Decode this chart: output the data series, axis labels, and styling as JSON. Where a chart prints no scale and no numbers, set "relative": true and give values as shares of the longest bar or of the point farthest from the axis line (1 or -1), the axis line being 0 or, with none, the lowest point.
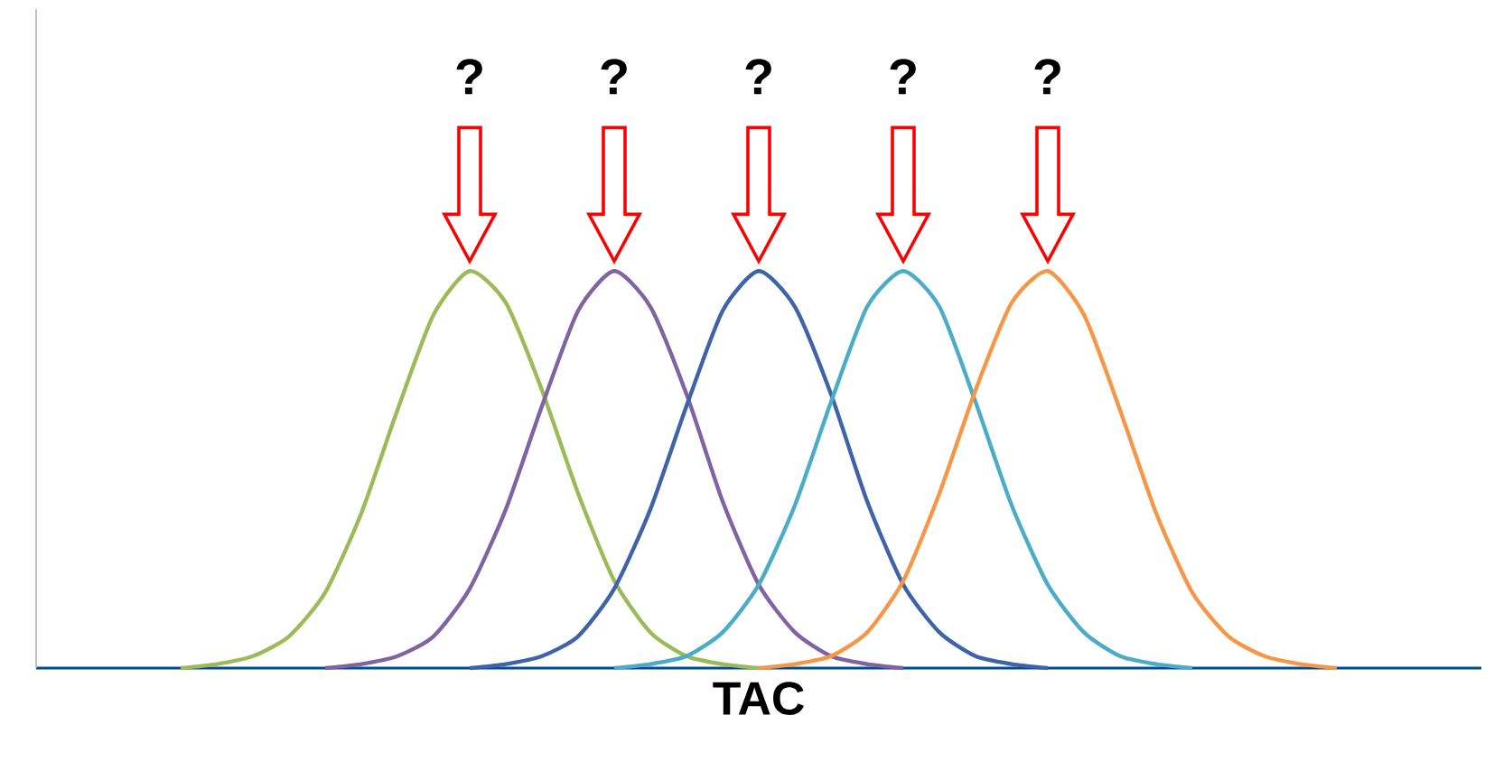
{
  "chart_data": {
    "type": "line",
    "relative": true,
    "xlabel": "TAC",
    "categories": [
      null,
      null,
      null,
      null,
      null,
      null,
      null,
      null,
      null,
      null,
      null,
      null,
      null,
      null,
      null,
      null,
      null,
      null,
      null,
      null,
      null,
      null,
      null,
      null,
      null,
      null,
      null,
      null,
      null,
      null,
      null,
      null,
      null,
      null,
      null,
      null,
      null,
      null,
      null,
      null,
      null
    ],
    "annotations": [
      "?",
      "?",
      "?",
      "?",
      "?"
    ],
    "series": [
      {
        "color": "#9bbb59",
        "values": [
          null,
          null,
          null,
          null,
          0,
          0.01,
          0.03,
          0.08,
          0.19,
          0.39,
          0.65,
          0.89,
          1.0,
          0.92,
          0.7,
          0.44,
          0.22,
          0.09,
          0.03,
          0.01,
          0,
          null,
          null,
          null,
          null,
          null,
          null,
          null,
          null,
          null,
          null,
          null,
          null,
          null,
          null,
          null,
          null,
          null,
          null,
          null,
          null
        ]
      },
      {
        "color": "#8064a2",
        "values": [
          null,
          null,
          null,
          null,
          null,
          null,
          null,
          null,
          0,
          0.01,
          0.03,
          0.08,
          0.2,
          0.4,
          0.66,
          0.9,
          1.0,
          0.91,
          0.69,
          0.42,
          0.21,
          0.09,
          0.03,
          0.01,
          0,
          null,
          null,
          null,
          null,
          null,
          null,
          null,
          null,
          null,
          null,
          null,
          null,
          null,
          null,
          null,
          null
        ]
      },
      {
        "color": "#3f63a8",
        "values": [
          null,
          null,
          null,
          null,
          null,
          null,
          null,
          null,
          null,
          null,
          null,
          null,
          0,
          0.01,
          0.03,
          0.08,
          0.2,
          0.4,
          0.66,
          0.9,
          1.0,
          0.91,
          0.69,
          0.42,
          0.21,
          0.09,
          0.03,
          0.01,
          0,
          null,
          null,
          null,
          null,
          null,
          null,
          null,
          null,
          null,
          null,
          null,
          null
        ]
      },
      {
        "color": "#4bacc6",
        "values": [
          null,
          null,
          null,
          null,
          null,
          null,
          null,
          null,
          null,
          null,
          null,
          null,
          null,
          null,
          null,
          null,
          0,
          0.01,
          0.03,
          0.09,
          0.21,
          0.41,
          0.67,
          0.91,
          1.0,
          0.91,
          0.67,
          0.41,
          0.21,
          0.09,
          0.03,
          0.01,
          0,
          null,
          null,
          null,
          null,
          null,
          null,
          null,
          null
        ]
      },
      {
        "color": "#f79646",
        "values": [
          null,
          null,
          null,
          null,
          null,
          null,
          null,
          null,
          null,
          null,
          null,
          null,
          null,
          null,
          null,
          null,
          null,
          null,
          null,
          null,
          0,
          0.01,
          0.03,
          0.09,
          0.22,
          0.44,
          0.7,
          0.92,
          1.0,
          0.89,
          0.65,
          0.39,
          0.19,
          0.08,
          0.03,
          0.01,
          0,
          null,
          null,
          null,
          null
        ]
      }
    ]
  }
}
